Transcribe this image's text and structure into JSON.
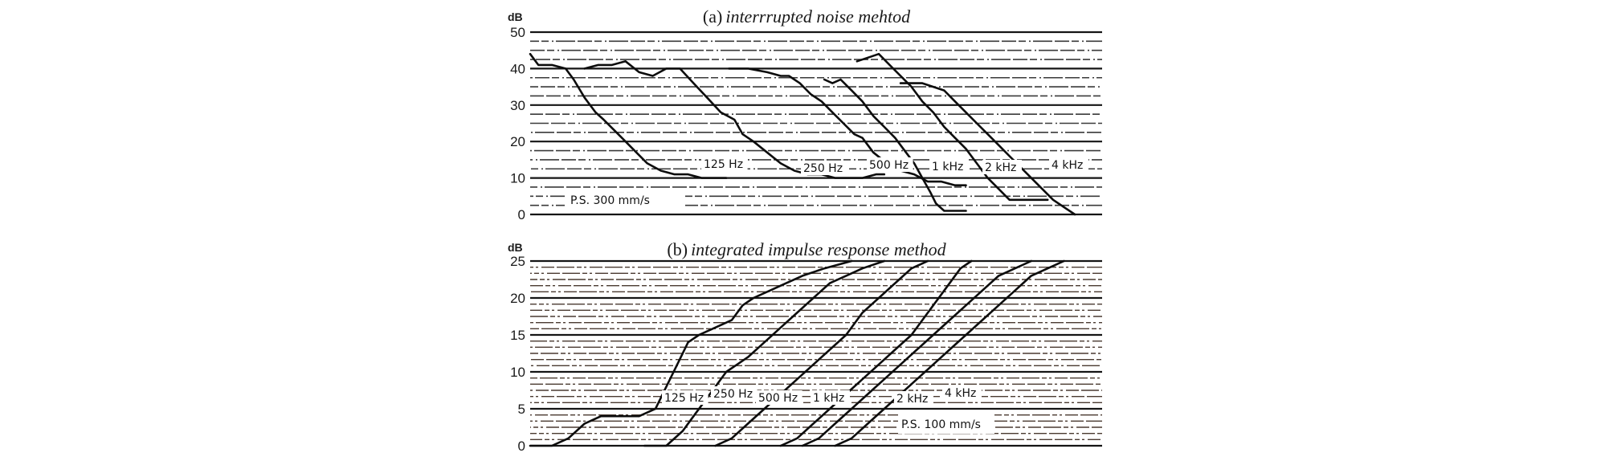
{
  "chart_data": [
    {
      "type": "line",
      "panel": "a",
      "title_prefix": "(a)",
      "title": "interrrupted noise mehtod",
      "ylabel": "dB",
      "ylim": [
        0,
        50
      ],
      "yticks": [
        0,
        10,
        20,
        30,
        40,
        50
      ],
      "ytick_labels": [
        "0",
        "10",
        "20",
        "30",
        "40",
        "50"
      ],
      "grid": true,
      "annotation": "P.S. 300 mm/s",
      "series": [
        {
          "name": "125 Hz",
          "points": [
            [
              0,
              44
            ],
            [
              3,
              41
            ],
            [
              8,
              41
            ],
            [
              13,
              40
            ],
            [
              16,
              37
            ],
            [
              20,
              32
            ],
            [
              24,
              28
            ],
            [
              27,
              26
            ],
            [
              31,
              23
            ],
            [
              35,
              20
            ],
            [
              39,
              17
            ],
            [
              43,
              14
            ],
            [
              48,
              12
            ],
            [
              53,
              11
            ],
            [
              58,
              11
            ],
            [
              63,
              10
            ],
            [
              67,
              10
            ],
            [
              72,
              10
            ]
          ]
        },
        {
          "name": "250 Hz",
          "points": [
            [
              20,
              40
            ],
            [
              25,
              41
            ],
            [
              30,
              41
            ],
            [
              35,
              42
            ],
            [
              40,
              39
            ],
            [
              45,
              38
            ],
            [
              50,
              40
            ],
            [
              55,
              40
            ],
            [
              60,
              36
            ],
            [
              65,
              32
            ],
            [
              70,
              28
            ],
            [
              75,
              26
            ],
            [
              78,
              22
            ],
            [
              82,
              20
            ],
            [
              87,
              17
            ],
            [
              92,
              14
            ],
            [
              97,
              12
            ],
            [
              102,
              11
            ],
            [
              107,
              11
            ],
            [
              112,
              10
            ],
            [
              117,
              10
            ],
            [
              122,
              10
            ],
            [
              127,
              11
            ],
            [
              130,
              11
            ]
          ]
        },
        {
          "name": "500 Hz",
          "points": [
            [
              73,
              40
            ],
            [
              80,
              40
            ],
            [
              87,
              39
            ],
            [
              92,
              38
            ],
            [
              95,
              38
            ],
            [
              99,
              36
            ],
            [
              103,
              33
            ],
            [
              107,
              31
            ],
            [
              111,
              28
            ],
            [
              115,
              25
            ],
            [
              119,
              22
            ],
            [
              122,
              21
            ],
            [
              126,
              17
            ],
            [
              131,
              14
            ],
            [
              136,
              12
            ],
            [
              141,
              11
            ],
            [
              146,
              9
            ],
            [
              151,
              9
            ],
            [
              156,
              8
            ],
            [
              160,
              8
            ]
          ]
        },
        {
          "name": "1 kHz",
          "points": [
            [
              108,
              37
            ],
            [
              111,
              36
            ],
            [
              114,
              37
            ],
            [
              118,
              34
            ],
            [
              122,
              31
            ],
            [
              126,
              27
            ],
            [
              130,
              24
            ],
            [
              134,
              21
            ],
            [
              138,
              17
            ],
            [
              141,
              14
            ],
            [
              144,
              10
            ],
            [
              147,
              6
            ],
            [
              149,
              3
            ],
            [
              152,
              1
            ],
            [
              156,
              1
            ],
            [
              160,
              1
            ]
          ]
        },
        {
          "name": "2 kHz",
          "points": [
            [
              120,
              42
            ],
            [
              124,
              43
            ],
            [
              128,
              44
            ],
            [
              132,
              41
            ],
            [
              136,
              38
            ],
            [
              140,
              35
            ],
            [
              144,
              31
            ],
            [
              148,
              28
            ],
            [
              152,
              24
            ],
            [
              156,
              21
            ],
            [
              160,
              18
            ],
            [
              164,
              14
            ],
            [
              168,
              10
            ],
            [
              172,
              7
            ],
            [
              176,
              4
            ],
            [
              180,
              4
            ],
            [
              185,
              4
            ],
            [
              190,
              4
            ]
          ]
        },
        {
          "name": "4 kHz",
          "points": [
            [
              136,
              36
            ],
            [
              140,
              36
            ],
            [
              144,
              36
            ],
            [
              148,
              35
            ],
            [
              152,
              34
            ],
            [
              156,
              31
            ],
            [
              160,
              28
            ],
            [
              164,
              25
            ],
            [
              168,
              22
            ],
            [
              172,
              19
            ],
            [
              176,
              16
            ],
            [
              180,
              13
            ],
            [
              184,
              10
            ],
            [
              188,
              7
            ],
            [
              192,
              4
            ],
            [
              196,
              2
            ],
            [
              200,
              0
            ]
          ]
        }
      ],
      "series_labels": [
        "125 Hz",
        "250 Hz",
        "500 Hz",
        "1 kHz",
        "2 kHz",
        "4 kHz"
      ]
    },
    {
      "type": "line",
      "panel": "b",
      "title_prefix": "(b)",
      "title": "integrated impulse response method",
      "ylabel": "dB",
      "ylim": [
        0,
        25
      ],
      "yticks": [
        0,
        5,
        10,
        15,
        20,
        25
      ],
      "ytick_labels": [
        "0",
        "5",
        "10",
        "15",
        "20",
        "25"
      ],
      "grid": true,
      "annotation": "P.S. 100 mm/s",
      "series": [
        {
          "name": "125 Hz",
          "points": [
            [
              0,
              0
            ],
            [
              8,
              0
            ],
            [
              14,
              1
            ],
            [
              20,
              3
            ],
            [
              26,
              4
            ],
            [
              32,
              4
            ],
            [
              40,
              4
            ],
            [
              46,
              5
            ],
            [
              50,
              8
            ],
            [
              54,
              11
            ],
            [
              58,
              14
            ],
            [
              62,
              15
            ],
            [
              68,
              16
            ],
            [
              74,
              17
            ],
            [
              78,
              19
            ],
            [
              82,
              20
            ],
            [
              88,
              21
            ],
            [
              94,
              22
            ],
            [
              100,
              23
            ],
            [
              108,
              24
            ],
            [
              118,
              25
            ]
          ]
        },
        {
          "name": "250 Hz",
          "points": [
            [
              42,
              0
            ],
            [
              50,
              0
            ],
            [
              56,
              2
            ],
            [
              60,
              4
            ],
            [
              64,
              6
            ],
            [
              68,
              8
            ],
            [
              72,
              10
            ],
            [
              76,
              11
            ],
            [
              80,
              12
            ],
            [
              86,
              14
            ],
            [
              92,
              16
            ],
            [
              98,
              18
            ],
            [
              104,
              20
            ],
            [
              110,
              22
            ],
            [
              116,
              23
            ],
            [
              122,
              24
            ],
            [
              130,
              25
            ]
          ]
        },
        {
          "name": "500 Hz",
          "points": [
            [
              68,
              0
            ],
            [
              74,
              1
            ],
            [
              80,
              3
            ],
            [
              86,
              5
            ],
            [
              92,
              7
            ],
            [
              98,
              9
            ],
            [
              104,
              11
            ],
            [
              110,
              13
            ],
            [
              116,
              15
            ],
            [
              122,
              18
            ],
            [
              128,
              20
            ],
            [
              134,
              22
            ],
            [
              140,
              24
            ],
            [
              146,
              25
            ]
          ]
        },
        {
          "name": "1 kHz",
          "points": [
            [
              92,
              0
            ],
            [
              98,
              1
            ],
            [
              104,
              3
            ],
            [
              110,
              5
            ],
            [
              116,
              7
            ],
            [
              122,
              9
            ],
            [
              128,
              11
            ],
            [
              134,
              13
            ],
            [
              140,
              15
            ],
            [
              146,
              18
            ],
            [
              152,
              21
            ],
            [
              158,
              24
            ],
            [
              162,
              25
            ]
          ]
        },
        {
          "name": "2 kHz",
          "points": [
            [
              100,
              0
            ],
            [
              106,
              1
            ],
            [
              112,
              3
            ],
            [
              118,
              5
            ],
            [
              124,
              7
            ],
            [
              130,
              9
            ],
            [
              136,
              11
            ],
            [
              142,
              13
            ],
            [
              148,
              15
            ],
            [
              154,
              17
            ],
            [
              160,
              19
            ],
            [
              166,
              21
            ],
            [
              172,
              23
            ],
            [
              178,
              24
            ],
            [
              184,
              25
            ]
          ]
        },
        {
          "name": "4 kHz",
          "points": [
            [
              112,
              0
            ],
            [
              118,
              1
            ],
            [
              124,
              3
            ],
            [
              130,
              5
            ],
            [
              136,
              7
            ],
            [
              142,
              9
            ],
            [
              148,
              11
            ],
            [
              154,
              13
            ],
            [
              160,
              15
            ],
            [
              166,
              17
            ],
            [
              172,
              19
            ],
            [
              178,
              21
            ],
            [
              184,
              23
            ],
            [
              190,
              24
            ],
            [
              196,
              25
            ]
          ]
        }
      ],
      "series_labels": [
        "125 Hz",
        "250 Hz",
        "500 Hz",
        "1 kHz",
        "2 kHz",
        "4 kHz"
      ]
    }
  ]
}
